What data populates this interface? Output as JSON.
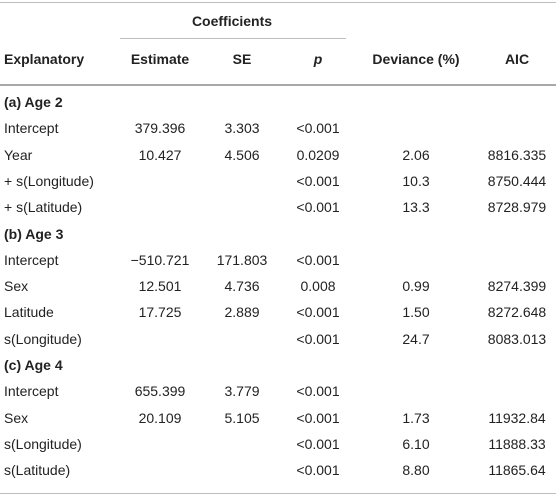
{
  "header": {
    "group": "Coefficients",
    "columns": [
      "Explanatory",
      "Estimate",
      "SE",
      "p",
      "Deviance (%)",
      "AIC"
    ]
  },
  "sections": [
    {
      "title": "(a) Age 2",
      "rows": [
        {
          "explanatory": "Intercept",
          "estimate": "379.396",
          "se": "3.303",
          "p": "<0.001",
          "deviance": "",
          "aic": ""
        },
        {
          "explanatory": "Year",
          "estimate": "10.427",
          "se": "4.506",
          "p": "0.0209",
          "deviance": "2.06",
          "aic": "8816.335"
        },
        {
          "explanatory": "+ s(Longitude)",
          "estimate": "",
          "se": "",
          "p": "<0.001",
          "deviance": "10.3",
          "aic": "8750.444"
        },
        {
          "explanatory": "+ s(Latitude)",
          "estimate": "",
          "se": "",
          "p": "<0.001",
          "deviance": "13.3",
          "aic": "8728.979"
        }
      ]
    },
    {
      "title": "(b) Age 3",
      "rows": [
        {
          "explanatory": "Intercept",
          "estimate": "−510.721",
          "se": "171.803",
          "p": "<0.001",
          "deviance": "",
          "aic": ""
        },
        {
          "explanatory": "Sex",
          "estimate": "12.501",
          "se": "4.736",
          "p": "0.008",
          "deviance": "0.99",
          "aic": "8274.399"
        },
        {
          "explanatory": "Latitude",
          "estimate": "17.725",
          "se": "2.889",
          "p": "<0.001",
          "deviance": "1.50",
          "aic": "8272.648"
        },
        {
          "explanatory": "s(Longitude)",
          "estimate": "",
          "se": "",
          "p": "<0.001",
          "deviance": "24.7",
          "aic": "8083.013"
        }
      ]
    },
    {
      "title": "(c) Age 4",
      "rows": [
        {
          "explanatory": "Intercept",
          "estimate": "655.399",
          "se": "3.779",
          "p": "<0.001",
          "deviance": "",
          "aic": ""
        },
        {
          "explanatory": "Sex",
          "estimate": "20.109",
          "se": "5.105",
          "p": "<0.001",
          "deviance": "1.73",
          "aic": "11932.84"
        },
        {
          "explanatory": "s(Longitude)",
          "estimate": "",
          "se": "",
          "p": "<0.001",
          "deviance": "6.10",
          "aic": "11888.33"
        },
        {
          "explanatory": "s(Latitude)",
          "estimate": "",
          "se": "",
          "p": "<0.001",
          "deviance": "8.80",
          "aic": "11865.64"
        }
      ]
    }
  ]
}
